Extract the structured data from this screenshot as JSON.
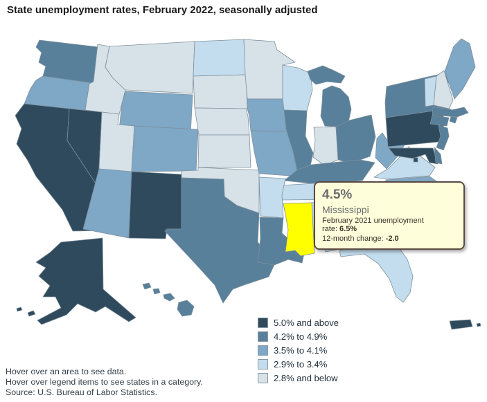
{
  "title": "State unemployment rates, February 2022, seasonally adjusted",
  "tooltip": {
    "value": "4.5%",
    "state": "Mississippi",
    "detail1_label": "February 2021 unemployment rate:",
    "detail1_value": "6.5%",
    "detail2_label": "12-month change:",
    "detail2_value": "-2.0"
  },
  "legend": {
    "items": [
      {
        "label": "5.0% and above",
        "category": "cat5",
        "color": "#2F4A5C"
      },
      {
        "label": "4.2% to 4.9%",
        "category": "cat4",
        "color": "#58809B"
      },
      {
        "label": "3.5% to 4.1%",
        "category": "cat3",
        "color": "#7FA7C6"
      },
      {
        "label": "2.9% to 3.4%",
        "category": "cat2",
        "color": "#C3DDEF"
      },
      {
        "label": "2.8% and below",
        "category": "cat1",
        "color": "#D7E1E8"
      }
    ]
  },
  "map": {
    "border_color": "#7E909C",
    "highlight_color": "#FFFF00",
    "highlighted_state": "MS"
  },
  "footer": {
    "lines": [
      "Hover over an area to see data.",
      "Hover over legend items to see states in a category.",
      "Source: U.S. Bureau of Labor Statistics."
    ]
  },
  "chart_data": {
    "type": "heatmap",
    "subtype": "us-choropleth",
    "title": "State unemployment rates, February 2022, seasonally adjusted",
    "legend_position": "bottom-right",
    "categories": [
      "5.0% and above",
      "4.2% to 4.9%",
      "3.5% to 4.1%",
      "2.9% to 3.4%",
      "2.8% and below"
    ],
    "highlight": {
      "state": "Mississippi",
      "february_2022_rate": "4.5%",
      "february_2021_rate": "6.5%",
      "twelve_month_change": "-2.0"
    },
    "states": [
      {
        "id": "WA",
        "name": "Washington",
        "category": "cat4"
      },
      {
        "id": "OR",
        "name": "Oregon",
        "category": "cat3"
      },
      {
        "id": "CA",
        "name": "California",
        "category": "cat5"
      },
      {
        "id": "NV",
        "name": "Nevada",
        "category": "cat5"
      },
      {
        "id": "ID",
        "name": "Idaho",
        "category": "cat1"
      },
      {
        "id": "MT",
        "name": "Montana",
        "category": "cat1"
      },
      {
        "id": "WY",
        "name": "Wyoming",
        "category": "cat3"
      },
      {
        "id": "UT",
        "name": "Utah",
        "category": "cat1"
      },
      {
        "id": "CO",
        "name": "Colorado",
        "category": "cat3"
      },
      {
        "id": "AZ",
        "name": "Arizona",
        "category": "cat3"
      },
      {
        "id": "NM",
        "name": "New Mexico",
        "category": "cat5"
      },
      {
        "id": "ND",
        "name": "North Dakota",
        "category": "cat2"
      },
      {
        "id": "SD",
        "name": "South Dakota",
        "category": "cat1"
      },
      {
        "id": "NE",
        "name": "Nebraska",
        "category": "cat1"
      },
      {
        "id": "KS",
        "name": "Kansas",
        "category": "cat1"
      },
      {
        "id": "OK",
        "name": "Oklahoma",
        "category": "cat1"
      },
      {
        "id": "TX",
        "name": "Texas",
        "category": "cat4"
      },
      {
        "id": "MN",
        "name": "Minnesota",
        "category": "cat1"
      },
      {
        "id": "IA",
        "name": "Iowa",
        "category": "cat3"
      },
      {
        "id": "WI",
        "name": "Wisconsin",
        "category": "cat2"
      },
      {
        "id": "IL",
        "name": "Illinois",
        "category": "cat4"
      },
      {
        "id": "MO",
        "name": "Missouri",
        "category": "cat3"
      },
      {
        "id": "MI",
        "name": "Michigan",
        "category": "cat4"
      },
      {
        "id": "IN",
        "name": "Indiana",
        "category": "cat1"
      },
      {
        "id": "OH",
        "name": "Ohio",
        "category": "cat4"
      },
      {
        "id": "KY",
        "name": "Kentucky",
        "category": "cat4"
      },
      {
        "id": "TN",
        "name": "Tennessee",
        "category": "cat2"
      },
      {
        "id": "AR",
        "name": "Arkansas",
        "category": "cat2"
      },
      {
        "id": "LA",
        "name": "Louisiana",
        "category": "cat4"
      },
      {
        "id": "MS",
        "name": "Mississippi",
        "category": "cat4"
      },
      {
        "id": "AL",
        "name": "Alabama",
        "category": "cat2"
      },
      {
        "id": "GA",
        "name": "Georgia",
        "category": "cat2"
      },
      {
        "id": "FL",
        "name": "Florida",
        "category": "cat2"
      },
      {
        "id": "WV",
        "name": "West Virginia",
        "category": "cat3"
      },
      {
        "id": "VA",
        "name": "Virginia",
        "category": "cat2"
      },
      {
        "id": "NC",
        "name": "North Carolina",
        "category": "cat3"
      },
      {
        "id": "SC",
        "name": "South Carolina",
        "category": "cat3"
      },
      {
        "id": "PA",
        "name": "Pennsylvania",
        "category": "cat5"
      },
      {
        "id": "NY",
        "name": "New York",
        "category": "cat4"
      },
      {
        "id": "NJ",
        "name": "New Jersey",
        "category": "cat4"
      },
      {
        "id": "VT",
        "name": "Vermont",
        "category": "cat2"
      },
      {
        "id": "NH",
        "name": "New Hampshire",
        "category": "cat1"
      },
      {
        "id": "ME",
        "name": "Maine",
        "category": "cat3"
      },
      {
        "id": "MA",
        "name": "Massachusetts",
        "category": "cat4"
      },
      {
        "id": "RI",
        "name": "Rhode Island",
        "category": "cat4"
      },
      {
        "id": "CT",
        "name": "Connecticut",
        "category": "cat4"
      },
      {
        "id": "DE",
        "name": "Delaware",
        "category": "cat4"
      },
      {
        "id": "MD",
        "name": "Maryland",
        "category": "cat5"
      },
      {
        "id": "DC",
        "name": "District of Columbia",
        "category": "cat5"
      },
      {
        "id": "AK",
        "name": "Alaska",
        "category": "cat5"
      },
      {
        "id": "HI",
        "name": "Hawaii",
        "category": "cat4"
      },
      {
        "id": "PR",
        "name": "Puerto Rico",
        "category": "cat5"
      }
    ]
  }
}
